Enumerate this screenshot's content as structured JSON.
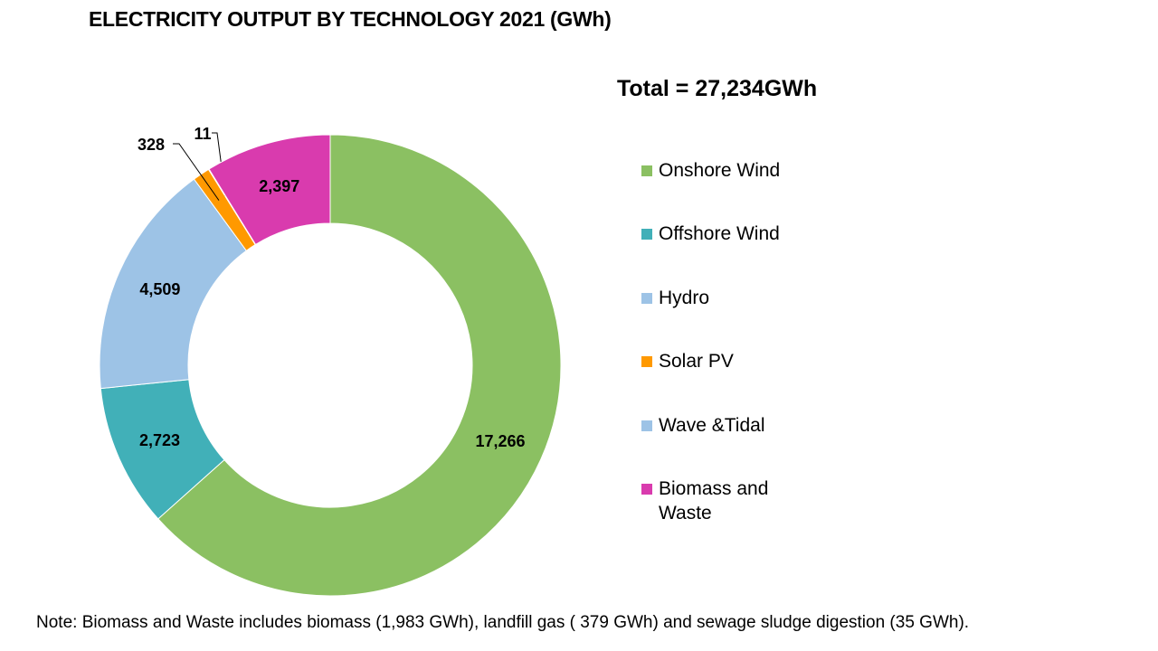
{
  "chart_data": {
    "type": "pie",
    "variant": "donut",
    "title": "ELECTRICITY OUTPUT BY TECHNOLOGY 2021 (GWh)",
    "subtitle": "Total = 27,234GWh",
    "legend_position": "right",
    "categories": [
      "Onshore Wind",
      "Offshore Wind",
      "Hydro",
      "Solar PV",
      "Wave &Tidal",
      "Biomass and Waste"
    ],
    "values": [
      17266,
      2723,
      4509,
      328,
      11,
      2397
    ],
    "data_labels": [
      "17,266",
      "2,723",
      "4,509",
      "328",
      "11",
      "2,397"
    ],
    "colors": [
      "#8BC062",
      "#41B0B8",
      "#9DC3E6",
      "#FF9900",
      "#9DC3E6",
      "#D93BAE"
    ]
  },
  "note": "Note: Biomass and Waste includes biomass (1,983 GWh), landfill gas ( 379 GWh) and sewage sludge digestion (35 GWh)."
}
